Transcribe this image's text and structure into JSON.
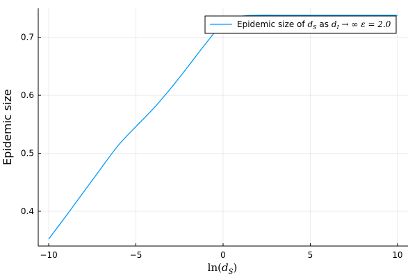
{
  "chart_data": {
    "type": "line",
    "title": "",
    "xlabel": {
      "func": "ln(",
      "var": "d",
      "sub": "S",
      "close": ")"
    },
    "ylabel": "Epidemic size",
    "xlim": [
      -10.6,
      10.6
    ],
    "ylim": [
      0.34,
      0.75
    ],
    "xticks": [
      -10,
      -5,
      0,
      5,
      10
    ],
    "xtick_labels": [
      "−10",
      "−5",
      "0",
      "5",
      "10"
    ],
    "yticks": [
      0.4,
      0.5,
      0.6,
      0.7
    ],
    "ytick_labels": [
      "0.4",
      "0.5",
      "0.6",
      "0.7"
    ],
    "grid": true,
    "legend_position": "top-right",
    "series": [
      {
        "name": "Epidemic size of d_S as d_I → ∞ ε = 2.0",
        "legend": {
          "prefix": "Epidemic size of ",
          "var1": "d",
          "sub1": "S",
          "mid": " as ",
          "var2": "d",
          "sub2": "I",
          "suffix": " → ∞ ε = 2.0"
        },
        "color": "#009AFA",
        "x": [
          -10,
          -9,
          -8,
          -7,
          -6,
          -5,
          -4,
          -3,
          -2,
          -1,
          0,
          1,
          2,
          3,
          4,
          5,
          6,
          7,
          8,
          9,
          10
        ],
        "y": [
          0.352,
          0.392,
          0.433,
          0.474,
          0.514,
          0.546,
          0.577,
          0.612,
          0.65,
          0.689,
          0.724,
          0.736,
          0.738,
          0.738,
          0.738,
          0.738,
          0.738,
          0.738,
          0.738,
          0.738,
          0.738
        ]
      }
    ]
  }
}
